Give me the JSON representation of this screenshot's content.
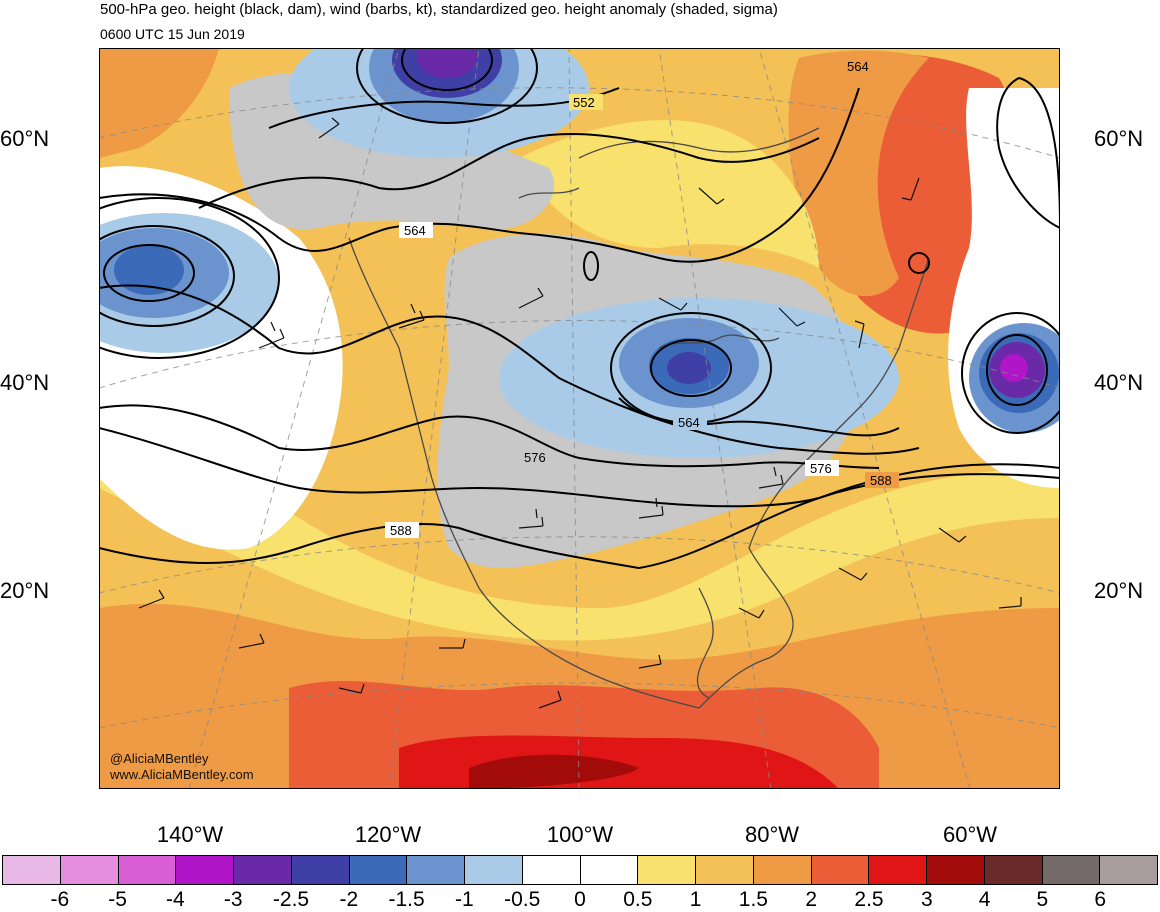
{
  "header": {
    "title": "500-hPa geo. height (black, dam), wind (barbs, kt), standardized geo. height anomaly (shaded, sigma)",
    "valid_time": "0600 UTC 15 Jun 2019"
  },
  "map": {
    "lat_labels": [
      "60°N",
      "40°N",
      "20°N"
    ],
    "lon_labels": [
      "140°W",
      "120°W",
      "100°W",
      "80°W",
      "60°W"
    ],
    "contour_labels": [
      "552",
      "564",
      "564",
      "564",
      "576",
      "576",
      "588",
      "588"
    ],
    "credit_handle": "@AliciaMBentley",
    "credit_url": "www.AliciaMBentley.com"
  },
  "colorbar": {
    "tick_labels": [
      "-6",
      "-5",
      "-4",
      "-3",
      "-2.5",
      "-2",
      "-1.5",
      "-1",
      "-0.5",
      "0",
      "0.5",
      "1",
      "1.5",
      "2",
      "2.5",
      "3",
      "4",
      "5",
      "6"
    ],
    "colors": [
      "#e8b9e6",
      "#e58ee0",
      "#d95fd6",
      "#b016c7",
      "#6a2aa8",
      "#3f3fa6",
      "#3a6ab8",
      "#6b94cf",
      "#a9cbe8",
      "#ffffff",
      "#ffffff",
      "#f8e16c",
      "#f3c155",
      "#ef9a44",
      "#ea5d36",
      "#e01616",
      "#a30b0b",
      "#6b2a2a",
      "#746a6a",
      "#a89c9c"
    ]
  }
}
